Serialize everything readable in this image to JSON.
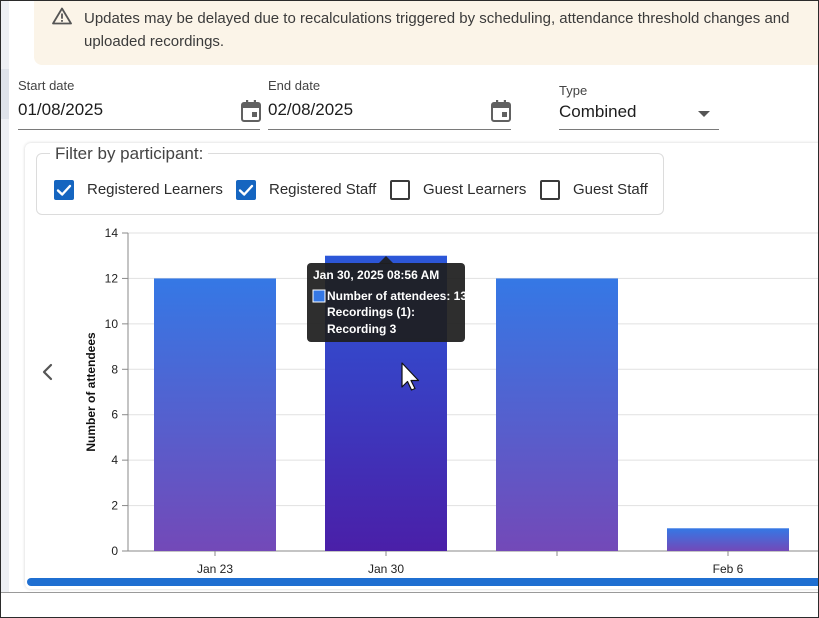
{
  "banner": {
    "icon": "warning-icon",
    "message": "Updates may be delayed due to recalculations triggered by scheduling, attendance threshold changes and uploaded recordings."
  },
  "filters": {
    "start_date": {
      "label": "Start date",
      "value": "01/08/2025"
    },
    "end_date": {
      "label": "End date",
      "value": "02/08/2025"
    },
    "type": {
      "label": "Type",
      "value": "Combined"
    }
  },
  "participants": {
    "legend": "Filter by participant:",
    "options": [
      {
        "label": "Registered Learners",
        "checked": true
      },
      {
        "label": "Registered Staff",
        "checked": true
      },
      {
        "label": "Guest Learners",
        "checked": false
      },
      {
        "label": "Guest Staff",
        "checked": false
      }
    ]
  },
  "chart_data": {
    "type": "bar",
    "categories": [
      "Jan 23",
      "Jan 30",
      "",
      "Feb 6"
    ],
    "values": [
      12,
      13,
      12,
      1
    ],
    "ylabel": "Number of attendees",
    "xlabel": "",
    "ylim": [
      0,
      14
    ],
    "yticks": [
      0,
      2,
      4,
      6,
      8,
      10,
      12,
      14
    ],
    "grid": true,
    "colors": {
      "top": "#3578e5",
      "bottom": "#7349b8",
      "hover_top": "#2c57d8",
      "hover_bottom": "#4a1fa8",
      "swatch": "#3578e5"
    },
    "tooltip": {
      "title": "Jan 30, 2025 08:56 AM",
      "line1": "Number of attendees: 13",
      "line2": "Recordings (1):",
      "line3": "Recording 3",
      "hover_index": 1
    }
  }
}
